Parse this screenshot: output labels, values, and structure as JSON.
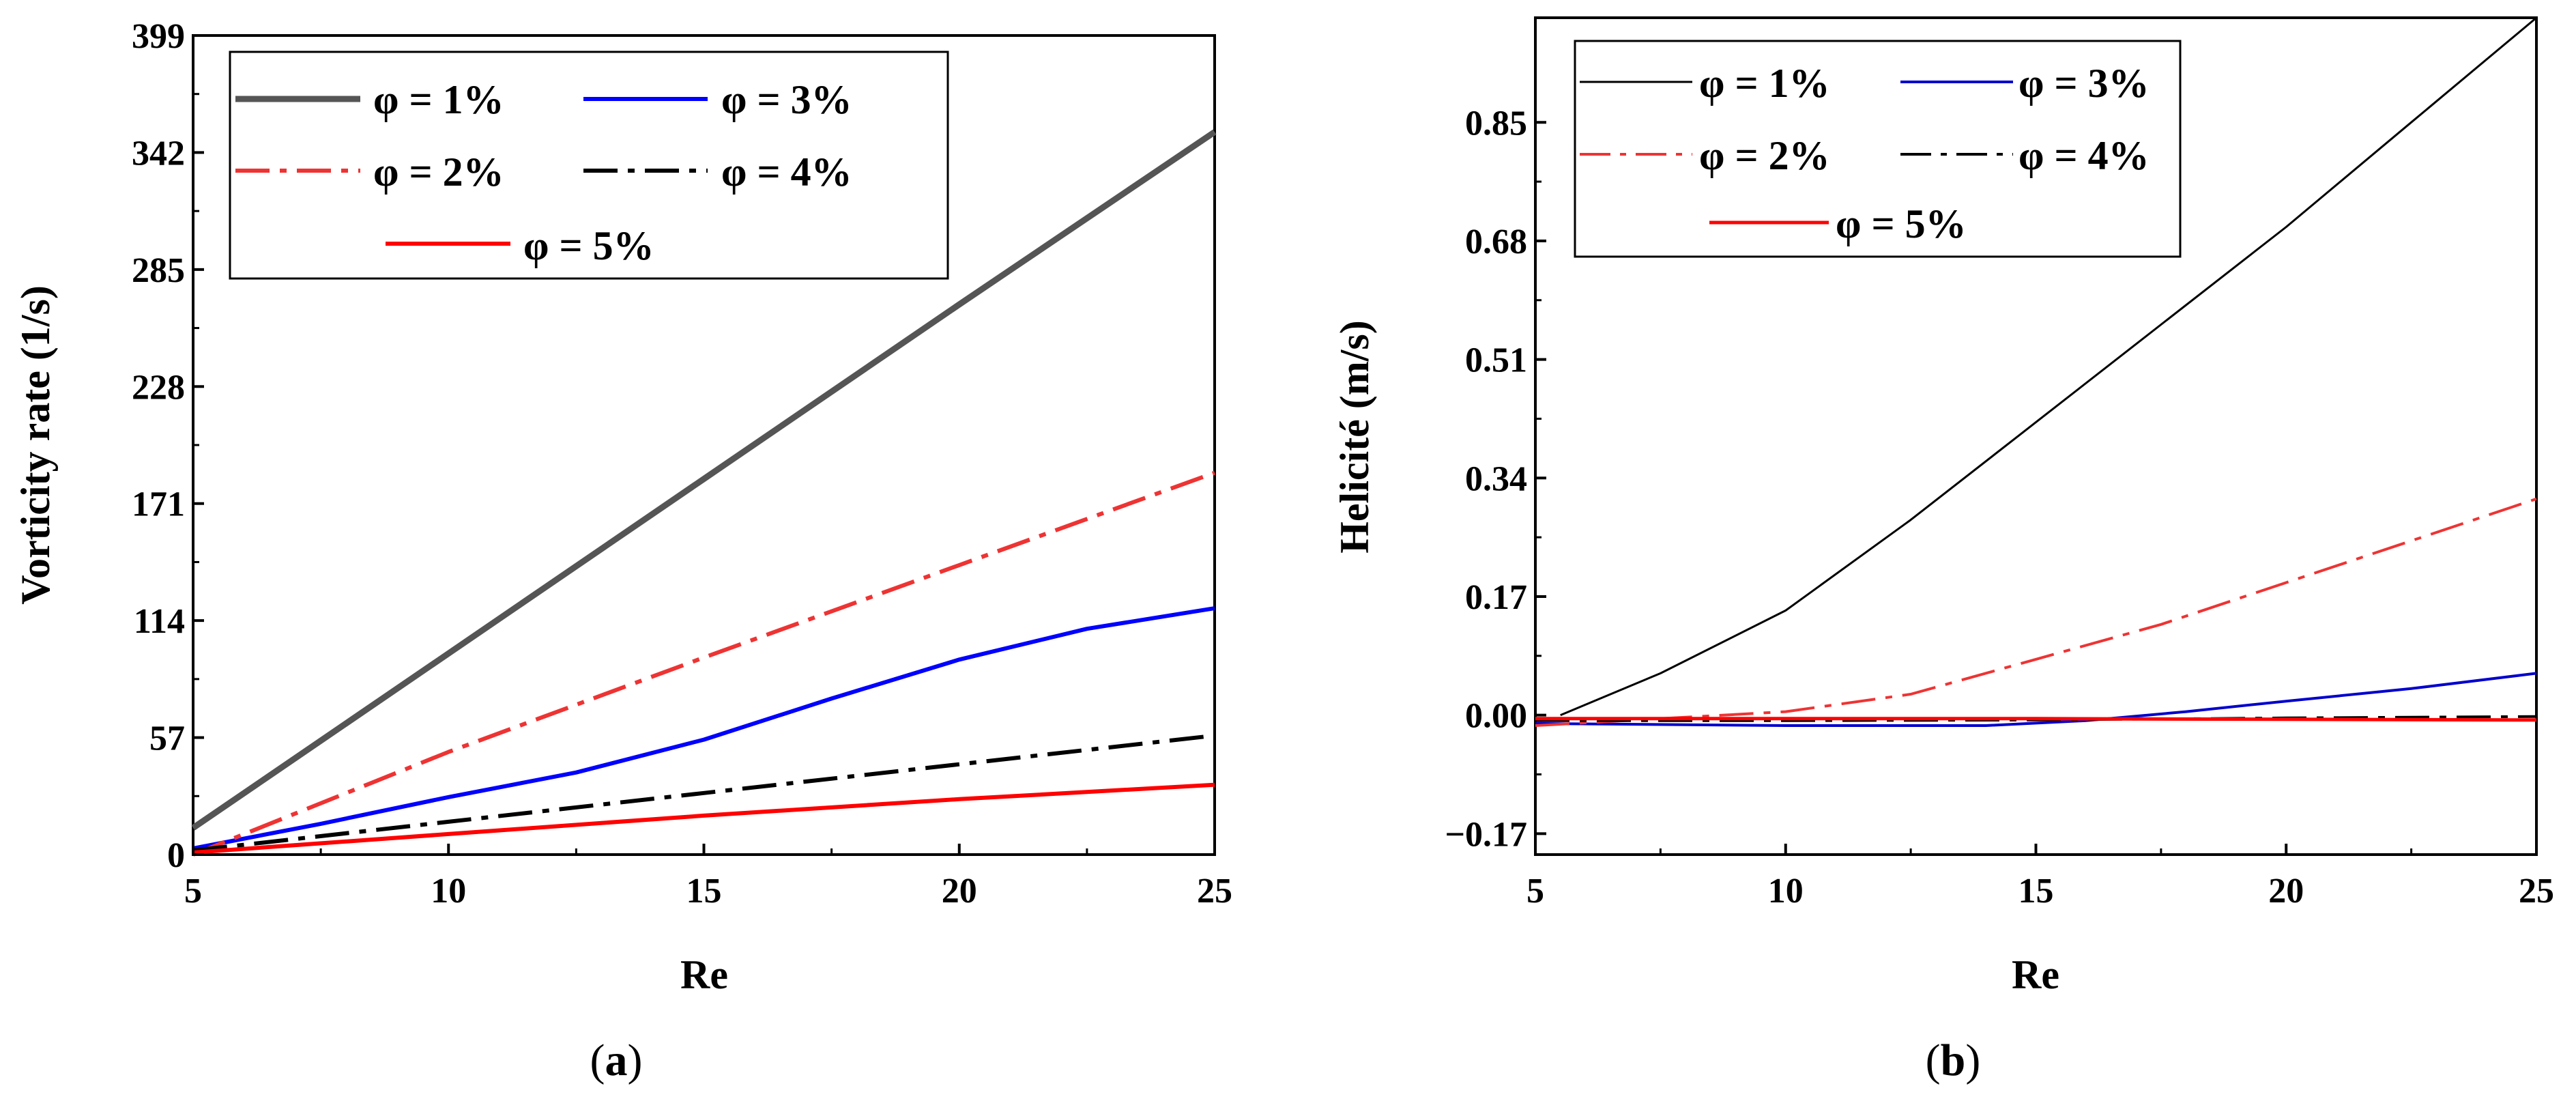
{
  "chart_data": [
    {
      "panel_label": "a",
      "type": "line",
      "xlabel": "Re",
      "ylabel": "Vorticity rate (1/s)",
      "xlim": [
        5,
        25
      ],
      "ylim": [
        0,
        399
      ],
      "xticks": [
        5,
        10,
        15,
        20,
        25
      ],
      "xtick_labels": [
        "5",
        "10",
        "15",
        "20",
        "25"
      ],
      "yticks": [
        0,
        57,
        114,
        171,
        228,
        285,
        342,
        399
      ],
      "ytick_labels": [
        "0",
        "57",
        "114",
        "171",
        "228",
        "285",
        "342",
        "399"
      ],
      "legend_position": "top-left",
      "series": [
        {
          "name": "φ = 1%",
          "color": "#555555",
          "style": "solid",
          "width": 9,
          "x": [
            5,
            10,
            15,
            20,
            25
          ],
          "y": [
            13,
            98,
            183,
            268,
            352
          ]
        },
        {
          "name": "φ = 3%",
          "color": "#0000ff",
          "style": "solid",
          "width": 6,
          "x": [
            5,
            7.5,
            10,
            12.5,
            15,
            17.5,
            20,
            22.5,
            25
          ],
          "y": [
            3,
            15,
            28,
            40,
            56,
            76,
            95,
            110,
            120
          ]
        },
        {
          "name": "φ = 2%",
          "color": "#ee3333",
          "style": "dashdot",
          "width": 6,
          "x": [
            5,
            10,
            15,
            20,
            25
          ],
          "y": [
            0,
            50,
            96,
            141,
            186
          ]
        },
        {
          "name": "φ = 4%",
          "color": "#000000",
          "style": "dashdot",
          "width": 6,
          "x": [
            5,
            10,
            15,
            20,
            25
          ],
          "y": [
            2,
            16,
            30,
            44,
            58
          ]
        },
        {
          "name": "φ = 5%",
          "color": "#ff0000",
          "style": "solid",
          "width": 6,
          "x": [
            5,
            10,
            15,
            20,
            25
          ],
          "y": [
            1,
            10,
            19,
            27,
            34
          ]
        }
      ]
    },
    {
      "panel_label": "b",
      "type": "line",
      "xlabel": "Re",
      "ylabel": "Helicité (m/s)",
      "xlim": [
        5,
        25
      ],
      "ylim": [
        -0.2,
        1.0
      ],
      "xticks": [
        5,
        10,
        15,
        20,
        25
      ],
      "xtick_labels": [
        "5",
        "10",
        "15",
        "20",
        "25"
      ],
      "yticks": [
        -0.17,
        0,
        0.17,
        0.34,
        0.51,
        0.68,
        0.85
      ],
      "ytick_labels": [
        "−0.17",
        "0.00",
        "0.17",
        "0.34",
        "0.51",
        "0.68",
        "0.85"
      ],
      "legend_position": "top-left",
      "series": [
        {
          "name": "φ = 1%",
          "color": "#000000",
          "style": "solid",
          "width": 3,
          "x": [
            5.5,
            7.5,
            10,
            12.5,
            15,
            17.5,
            20,
            22.5,
            25
          ],
          "y": [
            0,
            0.06,
            0.15,
            0.28,
            0.42,
            0.56,
            0.7,
            0.85,
            1.0
          ]
        },
        {
          "name": "φ = 3%",
          "color": "#0000cc",
          "style": "solid",
          "width": 4,
          "x": [
            5,
            10,
            14,
            16,
            18,
            20,
            22.5,
            25
          ],
          "y": [
            -0.012,
            -0.015,
            -0.015,
            -0.008,
            0.005,
            0.02,
            0.038,
            0.06
          ]
        },
        {
          "name": "φ = 2%",
          "color": "#ee3333",
          "style": "dashdot",
          "width": 4,
          "x": [
            5,
            7.5,
            10,
            12.5,
            15,
            17.5,
            20,
            22.5,
            25
          ],
          "y": [
            -0.015,
            -0.005,
            0.005,
            0.03,
            0.08,
            0.13,
            0.19,
            0.25,
            0.31
          ]
        },
        {
          "name": "φ = 4%",
          "color": "#000000",
          "style": "dashdot",
          "width": 4,
          "x": [
            5,
            10,
            15,
            20,
            25
          ],
          "y": [
            -0.008,
            -0.008,
            -0.007,
            -0.004,
            -0.002
          ]
        },
        {
          "name": "φ = 5%",
          "color": "#ff0000",
          "style": "solid",
          "width": 5,
          "x": [
            5,
            10,
            15,
            20,
            25
          ],
          "y": [
            -0.005,
            -0.005,
            -0.005,
            -0.006,
            -0.007
          ]
        }
      ]
    }
  ]
}
